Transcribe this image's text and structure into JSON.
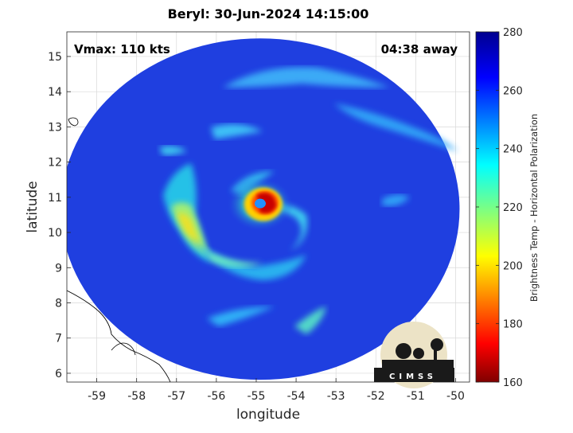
{
  "title": "Beryl: 30-Jun-2024 14:15:00",
  "vmax_label": "Vmax: 110 kts",
  "time_label": "04:38 away",
  "logo_text": "CIMSS",
  "chart_data": {
    "type": "heatmap",
    "xlabel": "longitude",
    "ylabel": "latitude",
    "xlim": [
      -59.75,
      -49.65
    ],
    "ylim": [
      5.75,
      15.7
    ],
    "xticks": [
      -59,
      -58,
      -57,
      -56,
      -55,
      -54,
      -53,
      -52,
      -51,
      -50
    ],
    "xtick_labels": [
      "-59",
      "-58",
      "-57",
      "-56",
      "-55",
      "-54",
      "-53",
      "-52",
      "-51",
      "-50"
    ],
    "yticks": [
      6,
      7,
      8,
      9,
      10,
      11,
      12,
      13,
      14,
      15
    ],
    "ytick_labels": [
      "6",
      "7",
      "8",
      "9",
      "10",
      "11",
      "12",
      "13",
      "14",
      "15"
    ],
    "grid": true,
    "storm_center": {
      "lon": -54.9,
      "lat": 10.8
    },
    "swath_radius_deg": 5.0,
    "colorbar": {
      "label": "Brightness Temp - Horizontal Polarization",
      "min": 160,
      "max": 280,
      "ticks": [
        160,
        180,
        200,
        220,
        240,
        260,
        280
      ],
      "tick_labels": [
        "160",
        "180",
        "200",
        "220",
        "240",
        "260",
        "280"
      ],
      "colormap": "jet"
    }
  },
  "colors": {
    "background_cold": "#1f3fe0",
    "eyewall": "#c80000",
    "eye": "#2090ff",
    "coastline": "#000000",
    "grid": "#d9d9d9"
  }
}
